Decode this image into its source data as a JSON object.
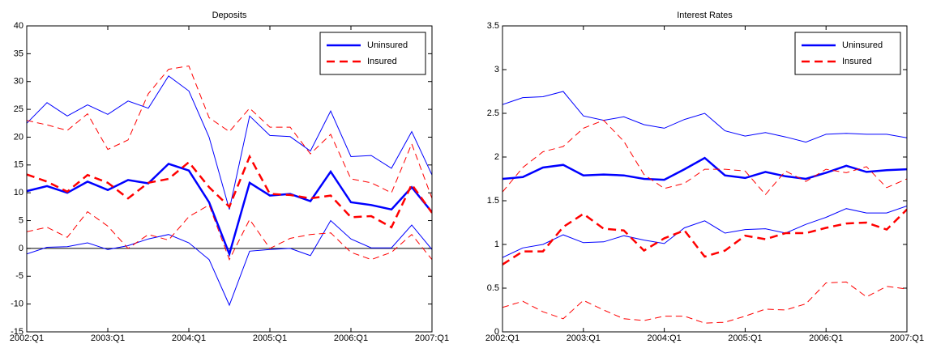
{
  "chart_data": [
    {
      "type": "line",
      "title": "Deposits",
      "categories": [
        "2002:Q1",
        null,
        null,
        null,
        "2003:Q1",
        null,
        null,
        null,
        "2004:Q1",
        null,
        null,
        null,
        "2005:Q1",
        null,
        null,
        null,
        "2006:Q1",
        null,
        null,
        null,
        "2007:Q1"
      ],
      "ylim": [
        -15,
        40
      ],
      "yticks": [
        -15,
        -10,
        -5,
        0,
        5,
        10,
        15,
        20,
        25,
        30,
        35,
        40
      ],
      "legend": "upper right",
      "zero_line": true,
      "series": [
        {
          "name": "Uninsured",
          "color": "#0000ff",
          "linestyle": "-",
          "values": [
            10.3,
            11.2,
            10,
            12,
            10.5,
            12.3,
            11.7,
            15.2,
            14,
            8.3,
            -1,
            11.8,
            9.5,
            9.8,
            8.5,
            13.8,
            8.3,
            7.8,
            7,
            11,
            6.5
          ],
          "upper": [
            22.5,
            26.2,
            23.8,
            25.8,
            24.1,
            26.5,
            25.2,
            31,
            28.3,
            20,
            7,
            23.8,
            20.3,
            20.1,
            17.5,
            24.7,
            16.5,
            16.7,
            14.4,
            21,
            13.2
          ],
          "lower": [
            -1,
            0.2,
            0.3,
            1,
            -0.2,
            0.5,
            1.7,
            2.5,
            1,
            -2,
            -10.2,
            -0.5,
            -0.2,
            0,
            -1.3,
            5,
            1.7,
            0.1,
            0.1,
            4.2,
            -0.2
          ]
        },
        {
          "name": "Insured",
          "color": "#ff0000",
          "linestyle": "--",
          "values": [
            13.3,
            12,
            10.2,
            13.2,
            11.8,
            9,
            11.8,
            12.5,
            15.5,
            11,
            7.5,
            16.5,
            9.8,
            9.6,
            9,
            9.5,
            5.6,
            5.8,
            3.8,
            11.5,
            6.4
          ],
          "upper": [
            23,
            22.2,
            21.2,
            24.2,
            17.8,
            19.5,
            27.8,
            32.2,
            32.8,
            23.5,
            21,
            25.2,
            21.8,
            21.8,
            17,
            20.5,
            12.5,
            11.8,
            10,
            18.8,
            9
          ],
          "lower": [
            3,
            3.8,
            2,
            6.6,
            4,
            0,
            2.5,
            1.5,
            5.7,
            7.8,
            -2,
            5.2,
            0,
            1.8,
            2.5,
            2.8,
            -0.7,
            -2,
            -0.7,
            2.5,
            -2
          ]
        }
      ]
    },
    {
      "type": "line",
      "title": "Interest Rates",
      "categories": [
        "2002:Q1",
        null,
        null,
        null,
        "2003:Q1",
        null,
        null,
        null,
        "2004:Q1",
        null,
        null,
        null,
        "2005:Q1",
        null,
        null,
        null,
        "2006:Q1",
        null,
        null,
        null,
        "2007:Q1"
      ],
      "ylim": [
        0,
        3.5
      ],
      "yticks": [
        0,
        0.5,
        1,
        1.5,
        2,
        2.5,
        3,
        3.5
      ],
      "legend": "upper right",
      "zero_line": false,
      "series": [
        {
          "name": "Uninsured",
          "color": "#0000ff",
          "linestyle": "-",
          "values": [
            1.75,
            1.77,
            1.88,
            1.91,
            1.79,
            1.8,
            1.79,
            1.75,
            1.74,
            1.86,
            1.99,
            1.79,
            1.76,
            1.83,
            1.78,
            1.75,
            1.82,
            1.9,
            1.83,
            1.85,
            1.86
          ],
          "upper": [
            2.6,
            2.68,
            2.69,
            2.75,
            2.47,
            2.42,
            2.46,
            2.37,
            2.33,
            2.43,
            2.5,
            2.3,
            2.24,
            2.28,
            2.23,
            2.17,
            2.26,
            2.27,
            2.26,
            2.26,
            2.22
          ],
          "lower": [
            0.85,
            0.96,
            1.0,
            1.11,
            1.02,
            1.03,
            1.1,
            1.05,
            1.01,
            1.19,
            1.27,
            1.13,
            1.17,
            1.18,
            1.13,
            1.23,
            1.31,
            1.41,
            1.36,
            1.36,
            1.44
          ]
        },
        {
          "name": "Insured",
          "color": "#ff0000",
          "linestyle": "--",
          "values": [
            0.77,
            0.92,
            0.92,
            1.2,
            1.35,
            1.18,
            1.16,
            0.93,
            1.07,
            1.16,
            0.86,
            0.93,
            1.1,
            1.06,
            1.13,
            1.13,
            1.19,
            1.24,
            1.25,
            1.17,
            1.4
          ],
          "upper": [
            1.6,
            1.88,
            2.06,
            2.12,
            2.33,
            2.42,
            2.18,
            1.8,
            1.64,
            1.7,
            1.86,
            1.86,
            1.84,
            1.57,
            1.84,
            1.72,
            1.86,
            1.82,
            1.89,
            1.65,
            1.75
          ],
          "lower": [
            0.28,
            0.35,
            0.23,
            0.15,
            0.36,
            0.25,
            0.15,
            0.13,
            0.18,
            0.18,
            0.1,
            0.11,
            0.18,
            0.26,
            0.25,
            0.32,
            0.56,
            0.57,
            0.4,
            0.52,
            0.49
          ]
        }
      ]
    }
  ]
}
